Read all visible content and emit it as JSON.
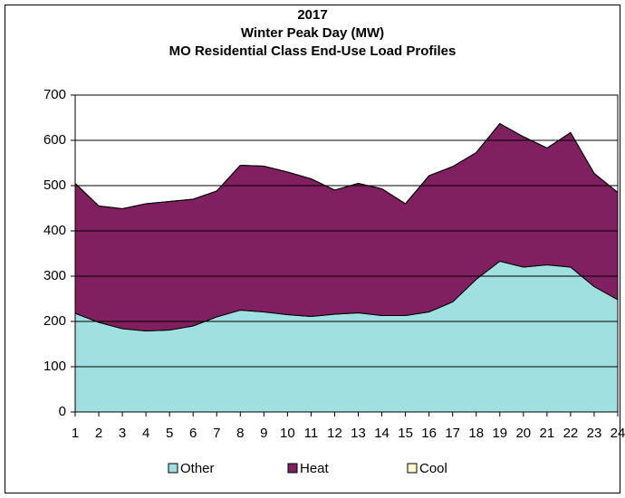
{
  "chart_data": {
    "type": "stacked_area",
    "title": [
      "2017",
      "Winter Peak Day (MW)",
      "MO Residential Class End-Use Load Profiles"
    ],
    "categories": [
      1,
      2,
      3,
      4,
      5,
      6,
      7,
      8,
      9,
      10,
      11,
      12,
      13,
      14,
      15,
      16,
      17,
      18,
      19,
      20,
      21,
      22,
      23,
      24
    ],
    "series": [
      {
        "name": "Other",
        "color": "#a0e0e0",
        "values": [
          218,
          198,
          184,
          179,
          181,
          190,
          210,
          225,
          221,
          215,
          211,
          216,
          219,
          213,
          213,
          221,
          243,
          293,
          333,
          320,
          325,
          320,
          277,
          248
        ]
      },
      {
        "name": "Heat",
        "color": "#802060",
        "values": [
          287,
          257,
          265,
          281,
          284,
          280,
          278,
          320,
          322,
          315,
          304,
          274,
          286,
          280,
          247,
          301,
          299,
          280,
          304,
          288,
          258,
          297,
          250,
          237
        ]
      },
      {
        "name": "Cool",
        "color": "#ffffcc",
        "values": [
          0,
          0,
          0,
          0,
          0,
          0,
          0,
          0,
          0,
          0,
          0,
          0,
          0,
          0,
          0,
          0,
          0,
          0,
          0,
          0,
          0,
          0,
          0,
          0
        ]
      }
    ],
    "ylim": [
      0,
      700
    ],
    "yticks": [
      0,
      100,
      200,
      300,
      400,
      500,
      600,
      700
    ],
    "grid": true,
    "legend": "bottom"
  }
}
